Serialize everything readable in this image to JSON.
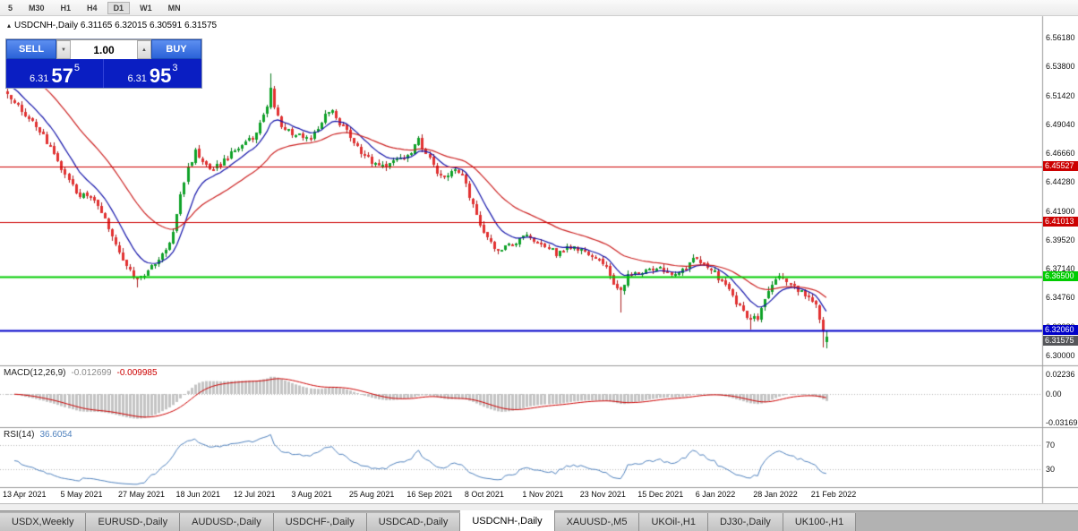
{
  "toolbar": {
    "timeframes": [
      {
        "label": "5",
        "active": false
      },
      {
        "label": "M30",
        "active": false
      },
      {
        "label": "H1",
        "active": false
      },
      {
        "label": "H4",
        "active": false
      },
      {
        "label": "D1",
        "active": true
      },
      {
        "label": "W1",
        "active": false
      },
      {
        "label": "MN",
        "active": false
      }
    ]
  },
  "chart": {
    "collapse_icon": "▴",
    "title": "USDCNH-,Daily 6.31165 6.32015 6.30591 6.31575"
  },
  "trade_widget": {
    "sell_label": "SELL",
    "buy_label": "BUY",
    "lot_value": "1.00",
    "lot_down_icon": "▼",
    "lot_up_icon": "▲",
    "sell_price": {
      "prefix": "6.31",
      "big": "57",
      "sup": "5"
    },
    "buy_price": {
      "prefix": "6.31",
      "big": "95",
      "sup": "3"
    }
  },
  "price_axis": {
    "labels": [
      {
        "v": 6.5618,
        "t": "6.56180"
      },
      {
        "v": 6.538,
        "t": "6.53800"
      },
      {
        "v": 6.5142,
        "t": "6.51420"
      },
      {
        "v": 6.4904,
        "t": "6.49040"
      },
      {
        "v": 6.4666,
        "t": "6.46660"
      },
      {
        "v": 6.4428,
        "t": "6.44280"
      },
      {
        "v": 6.419,
        "t": "6.41900"
      },
      {
        "v": 6.3952,
        "t": "6.39520"
      },
      {
        "v": 6.3714,
        "t": "6.37140"
      },
      {
        "v": 6.3476,
        "t": "6.34760"
      },
      {
        "v": 6.3238,
        "t": "6.32380"
      },
      {
        "v": 6.3,
        "t": "6.30000"
      }
    ]
  },
  "hlines": [
    {
      "value": 6.45527,
      "label": "6.45527",
      "color": "#cc0000",
      "width": 1
    },
    {
      "value": 6.41013,
      "label": "6.41013",
      "color": "#cc0000",
      "width": 1
    },
    {
      "value": 6.365,
      "label": "6.36500",
      "color": "#00cc00",
      "width": 2
    },
    {
      "value": 6.3206,
      "label": "6.32060",
      "color": "#0000c8",
      "width": 2
    }
  ],
  "current_price": {
    "value": 6.31575,
    "label": "6.31575",
    "color": "#55565a"
  },
  "indicators": {
    "macd": {
      "name": "MACD(12,26,9)",
      "value_text": "-0.012699",
      "signal_text": "-0.009985",
      "axis_labels": [
        {
          "v": 0.02236,
          "t": "0.02236"
        },
        {
          "v": 0,
          "t": "0.00"
        },
        {
          "v": -0.03169,
          "t": "-0.03169"
        }
      ]
    },
    "rsi": {
      "name": "RSI(14)",
      "value_text": "36.6054",
      "levels": [
        70,
        30
      ],
      "axis_labels": [
        {
          "v": 70,
          "t": "70"
        },
        {
          "v": 30,
          "t": "30"
        }
      ]
    }
  },
  "time_axis": {
    "labels": [
      {
        "i": 0,
        "t": "13 Apr 2021"
      },
      {
        "i": 16,
        "t": "5 May 2021"
      },
      {
        "i": 32,
        "t": "27 May 2021"
      },
      {
        "i": 48,
        "t": "18 Jun 2021"
      },
      {
        "i": 64,
        "t": "12 Jul 2021"
      },
      {
        "i": 80,
        "t": "3 Aug 2021"
      },
      {
        "i": 96,
        "t": "25 Aug 2021"
      },
      {
        "i": 112,
        "t": "16 Sep 2021"
      },
      {
        "i": 128,
        "t": "8 Oct 2021"
      },
      {
        "i": 144,
        "t": "1 Nov 2021"
      },
      {
        "i": 160,
        "t": "23 Nov 2021"
      },
      {
        "i": 176,
        "t": "15 Dec 2021"
      },
      {
        "i": 192,
        "t": "6 Jan 2022"
      },
      {
        "i": 208,
        "t": "28 Jan 2022"
      },
      {
        "i": 224,
        "t": "21 Feb 2022"
      }
    ]
  },
  "tabs": [
    {
      "label": "USDX,Weekly",
      "active": false
    },
    {
      "label": "EURUSD-,Daily",
      "active": false
    },
    {
      "label": "AUDUSD-,Daily",
      "active": false
    },
    {
      "label": "USDCHF-,Daily",
      "active": false
    },
    {
      "label": "USDCAD-,Daily",
      "active": false
    },
    {
      "label": "USDCNH-,Daily",
      "active": true
    },
    {
      "label": "XAUUSD-,M5",
      "active": false
    },
    {
      "label": "UKOil-,H1",
      "active": false
    },
    {
      "label": "DJ30-,Daily",
      "active": false
    },
    {
      "label": "UK100-,H1",
      "active": false
    }
  ],
  "chart_data": {
    "type": "candlestick",
    "symbol": "USDCNH-",
    "timeframe": "Daily",
    "panes": [
      "price",
      "MACD(12,26,9)",
      "RSI(14)"
    ],
    "price_range_visible": [
      6.293,
      6.5795
    ],
    "ohlc_current": {
      "o": 6.31165,
      "h": 6.32015,
      "l": 6.30591,
      "c": 6.31575
    },
    "last_candle": {
      "o": 6.31165,
      "h": 6.32015,
      "l": 6.30591,
      "c": 6.31575
    },
    "n_candles": 228,
    "close_anchors": [
      [
        0,
        6.517
      ],
      [
        4,
        6.5
      ],
      [
        8,
        6.488
      ],
      [
        12,
        6.472
      ],
      [
        16,
        6.448
      ],
      [
        20,
        6.432
      ],
      [
        24,
        6.428
      ],
      [
        28,
        6.405
      ],
      [
        32,
        6.378
      ],
      [
        36,
        6.362
      ],
      [
        40,
        6.372
      ],
      [
        44,
        6.386
      ],
      [
        46,
        6.402
      ],
      [
        48,
        6.432
      ],
      [
        50,
        6.455
      ],
      [
        52,
        6.468
      ],
      [
        54,
        6.462
      ],
      [
        56,
        6.452
      ],
      [
        60,
        6.46
      ],
      [
        64,
        6.472
      ],
      [
        68,
        6.478
      ],
      [
        70,
        6.49
      ],
      [
        72,
        6.507
      ],
      [
        73,
        6.518
      ],
      [
        74,
        6.502
      ],
      [
        76,
        6.488
      ],
      [
        80,
        6.482
      ],
      [
        84,
        6.477
      ],
      [
        86,
        6.489
      ],
      [
        88,
        6.497
      ],
      [
        90,
        6.5
      ],
      [
        92,
        6.492
      ],
      [
        96,
        6.475
      ],
      [
        100,
        6.462
      ],
      [
        104,
        6.455
      ],
      [
        108,
        6.462
      ],
      [
        112,
        6.468
      ],
      [
        114,
        6.477
      ],
      [
        116,
        6.468
      ],
      [
        118,
        6.456
      ],
      [
        120,
        6.448
      ],
      [
        124,
        6.452
      ],
      [
        126,
        6.448
      ],
      [
        128,
        6.432
      ],
      [
        130,
        6.415
      ],
      [
        132,
        6.4
      ],
      [
        134,
        6.392
      ],
      [
        136,
        6.385
      ],
      [
        140,
        6.393
      ],
      [
        144,
        6.398
      ],
      [
        148,
        6.392
      ],
      [
        152,
        6.384
      ],
      [
        156,
        6.39
      ],
      [
        160,
        6.386
      ],
      [
        164,
        6.38
      ],
      [
        166,
        6.372
      ],
      [
        168,
        6.36
      ],
      [
        170,
        6.352
      ],
      [
        172,
        6.366
      ],
      [
        176,
        6.37
      ],
      [
        180,
        6.372
      ],
      [
        184,
        6.368
      ],
      [
        188,
        6.372
      ],
      [
        190,
        6.38
      ],
      [
        192,
        6.378
      ],
      [
        196,
        6.368
      ],
      [
        200,
        6.354
      ],
      [
        202,
        6.345
      ],
      [
        204,
        6.338
      ],
      [
        206,
        6.328
      ],
      [
        208,
        6.332
      ],
      [
        210,
        6.345
      ],
      [
        212,
        6.358
      ],
      [
        214,
        6.366
      ],
      [
        216,
        6.362
      ],
      [
        218,
        6.356
      ],
      [
        220,
        6.352
      ],
      [
        222,
        6.346
      ],
      [
        224,
        6.34
      ],
      [
        225,
        6.328
      ],
      [
        226,
        6.318
      ],
      [
        227,
        6.31575
      ]
    ],
    "wick_overrides": [
      [
        73,
        "h",
        6.532
      ],
      [
        36,
        "l",
        6.356
      ],
      [
        170,
        "l",
        6.336
      ],
      [
        206,
        "l",
        6.3212
      ],
      [
        226,
        "l",
        6.3062
      ]
    ],
    "ma_fast_period": 10,
    "ma_slow_period": 30,
    "style": {
      "up": "#0fa228",
      "up_wick": "#0b7a1e",
      "down": "#e23131",
      "down_wick": "#a81e1e",
      "ma_fast": "#1414aa",
      "ma_slow": "#cc2222",
      "macd_hist": "#c4c4c4",
      "macd_signal": "#cc0000",
      "rsi_line": "#4f81bd",
      "level_dotted": "#b8b8b8",
      "separator": "#9a9a9a"
    }
  }
}
